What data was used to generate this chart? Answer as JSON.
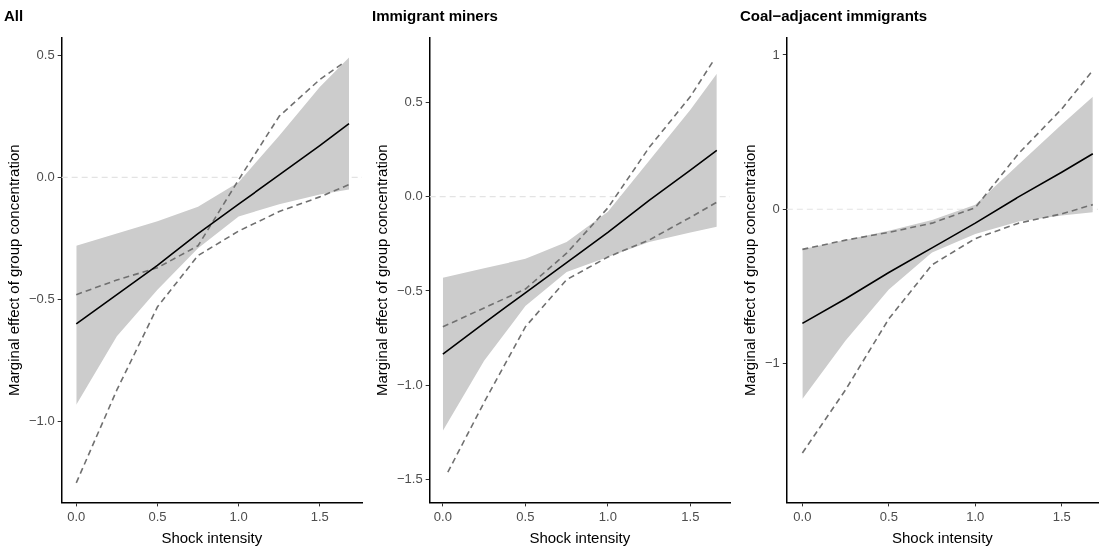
{
  "chart_data": [
    {
      "type": "line",
      "title": "All",
      "xlabel": "Shock intensity",
      "ylabel": "Marginal effect of group concentration",
      "xlim": [
        -0.09,
        1.76
      ],
      "ylim": [
        -1.33,
        0.57
      ],
      "xticks": [
        {
          "value": 0,
          "label": "0.0"
        },
        {
          "value": 0.5,
          "label": "0.5"
        },
        {
          "value": 1,
          "label": "1.0"
        },
        {
          "value": 1.5,
          "label": "1.5"
        }
      ],
      "yticks": [
        {
          "value": -1,
          "label": "−1.0"
        },
        {
          "value": -0.5,
          "label": "−0.5"
        },
        {
          "value": 0,
          "label": "0.0"
        },
        {
          "value": 0.5,
          "label": "0.5"
        }
      ],
      "grid": false,
      "legend": false,
      "marker": "none",
      "ref_lines": [
        {
          "axis": "y",
          "value": 0,
          "color": "#e3e3e3",
          "line_style": "dashed"
        }
      ],
      "series": [
        {
          "color": "#000000",
          "line_style": "solid",
          "x": [
            0,
            0.25,
            0.5,
            0.75,
            1,
            1.25,
            1.5,
            1.68
          ],
          "values": [
            -0.6,
            -0.48,
            -0.36,
            -0.23,
            -0.11,
            0.01,
            0.13,
            0.22
          ],
          "lower": [
            -0.93,
            -0.65,
            -0.46,
            -0.29,
            -0.16,
            -0.11,
            -0.07,
            -0.05
          ],
          "upper": [
            -0.28,
            -0.23,
            -0.18,
            -0.12,
            -0.02,
            0.17,
            0.37,
            0.49
          ]
        },
        {
          "color": "#707070",
          "line_style": "dashed",
          "x": [
            0,
            0.25,
            0.5,
            0.75,
            1,
            1.25,
            1.5,
            1.65
          ],
          "values": [
            -0.48,
            -0.42,
            -0.37,
            -0.28,
            -0.01,
            0.25,
            0.4,
            0.47
          ]
        },
        {
          "color": "#707070",
          "line_style": "dashed",
          "x": [
            0,
            0.25,
            0.5,
            0.75,
            1,
            1.25,
            1.5,
            1.68
          ],
          "values": [
            -1.25,
            -0.87,
            -0.53,
            -0.32,
            -0.22,
            -0.14,
            -0.08,
            -0.03
          ]
        }
      ]
    },
    {
      "type": "line",
      "title": "Immigrant miners",
      "xlabel": "Shock intensity",
      "ylabel": "Marginal effect of group concentration",
      "xlim": [
        -0.08,
        1.74
      ],
      "ylim": [
        -1.62,
        0.84
      ],
      "xticks": [
        {
          "value": 0,
          "label": "0.0"
        },
        {
          "value": 0.5,
          "label": "0.5"
        },
        {
          "value": 1,
          "label": "1.0"
        },
        {
          "value": 1.5,
          "label": "1.5"
        }
      ],
      "yticks": [
        {
          "value": -1.5,
          "label": "−1.5"
        },
        {
          "value": -1,
          "label": "−1.0"
        },
        {
          "value": -0.5,
          "label": "−0.5"
        },
        {
          "value": 0,
          "label": "0.0"
        },
        {
          "value": 0.5,
          "label": "0.5"
        }
      ],
      "grid": false,
      "legend": false,
      "marker": "none",
      "ref_lines": [
        {
          "axis": "y",
          "value": 0,
          "color": "#e3e3e3",
          "line_style": "dashed"
        }
      ],
      "series": [
        {
          "color": "#000000",
          "line_style": "solid",
          "x": [
            0,
            0.25,
            0.5,
            0.75,
            1,
            1.25,
            1.5,
            1.66
          ],
          "values": [
            -0.835,
            -0.67,
            -0.51,
            -0.35,
            -0.19,
            -0.02,
            0.14,
            0.245
          ],
          "lower": [
            -1.24,
            -0.87,
            -0.58,
            -0.4,
            -0.32,
            -0.24,
            -0.19,
            -0.16
          ],
          "upper": [
            -0.43,
            -0.38,
            -0.33,
            -0.24,
            -0.08,
            0.19,
            0.46,
            0.65
          ]
        },
        {
          "color": "#707070",
          "line_style": "dashed",
          "x": [
            0,
            0.25,
            0.5,
            0.75,
            1,
            1.25,
            1.5,
            1.64
          ],
          "values": [
            -0.69,
            -0.59,
            -0.49,
            -0.3,
            -0.06,
            0.26,
            0.53,
            0.72
          ]
        },
        {
          "color": "#707070",
          "line_style": "dashed",
          "x": [
            0.03,
            0.25,
            0.5,
            0.75,
            1,
            1.25,
            1.5,
            1.66
          ],
          "values": [
            -1.46,
            -1.09,
            -0.69,
            -0.44,
            -0.32,
            -0.23,
            -0.11,
            -0.03
          ]
        }
      ]
    },
    {
      "type": "line",
      "title": "Coal−adjacent immigrants",
      "xlabel": "Shock intensity",
      "ylabel": "Marginal effect of group concentration",
      "xlim": [
        -0.09,
        1.71
      ],
      "ylim": [
        -1.9,
        1.11
      ],
      "xticks": [
        {
          "value": 0,
          "label": "0.0"
        },
        {
          "value": 0.5,
          "label": "0.5"
        },
        {
          "value": 1,
          "label": "1.0"
        },
        {
          "value": 1.5,
          "label": "1.5"
        }
      ],
      "yticks": [
        {
          "value": -1,
          "label": "−1"
        },
        0,
        1
      ],
      "grid": false,
      "legend": false,
      "marker": "none",
      "ref_lines": [
        {
          "axis": "y",
          "value": 0,
          "color": "#e3e3e3",
          "line_style": "dashed"
        }
      ],
      "series": [
        {
          "color": "#000000",
          "line_style": "solid",
          "x": [
            0,
            0.25,
            0.5,
            0.75,
            1,
            1.25,
            1.5,
            1.68
          ],
          "values": [
            -0.74,
            -0.58,
            -0.41,
            -0.25,
            -0.09,
            0.08,
            0.24,
            0.36
          ],
          "lower": [
            -1.23,
            -0.85,
            -0.52,
            -0.28,
            -0.16,
            -0.08,
            -0.04,
            -0.02
          ],
          "upper": [
            -0.26,
            -0.2,
            -0.14,
            -0.07,
            0.03,
            0.29,
            0.55,
            0.73
          ]
        },
        {
          "color": "#707070",
          "line_style": "dashed",
          "x": [
            0,
            0.25,
            0.5,
            0.75,
            1,
            1.25,
            1.5,
            1.68
          ],
          "values": [
            -0.26,
            -0.2,
            -0.15,
            -0.09,
            0.01,
            0.36,
            0.65,
            0.9
          ]
        },
        {
          "color": "#707070",
          "line_style": "dashed",
          "x": [
            0,
            0.25,
            0.5,
            0.75,
            1,
            1.25,
            1.5,
            1.68
          ],
          "values": [
            -1.58,
            -1.17,
            -0.71,
            -0.36,
            -0.19,
            -0.09,
            -0.03,
            0.03
          ]
        }
      ]
    }
  ]
}
